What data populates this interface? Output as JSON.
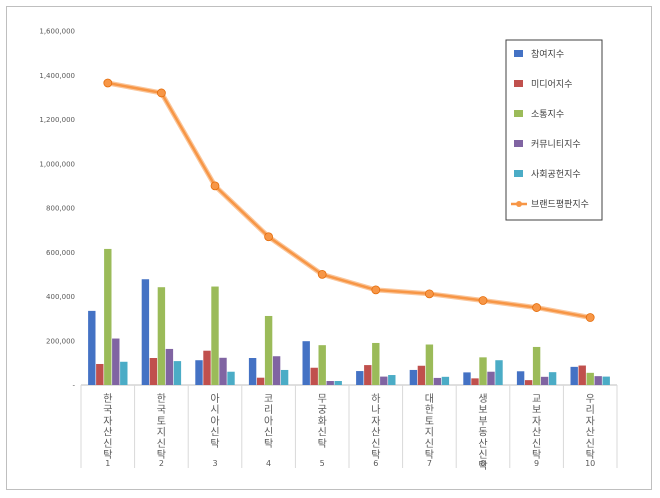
{
  "chart_data": {
    "type": "bar",
    "categories": [
      "한국자산신탁",
      "한국토지신탁",
      "아시아신탁",
      "코리아신탁",
      "무궁화신탁",
      "하나자산신탁",
      "대한토지신탁",
      "생보부동산신탁",
      "교보자산신탁",
      "우리자산신탁"
    ],
    "ranks": [
      "1",
      "2",
      "3",
      "4",
      "5",
      "6",
      "7",
      "8",
      "9",
      "10"
    ],
    "ylim": [
      0,
      1600000
    ],
    "yticks": [
      "-",
      "200,000",
      "400,000",
      "600,000",
      "800,000",
      "1,000,000",
      "1,200,000",
      "1,400,000",
      "1,600,000"
    ],
    "legend_position": "top-right",
    "series": [
      {
        "name": "참여지수",
        "type": "bar",
        "color": "#4472c4",
        "values": [
          335000,
          478000,
          112000,
          122000,
          198000,
          63000,
          68000,
          57000,
          62000,
          82000
        ]
      },
      {
        "name": "미디어지수",
        "type": "bar",
        "color": "#c0504d",
        "values": [
          95000,
          122000,
          155000,
          33000,
          78000,
          90000,
          87000,
          30000,
          22000,
          88000
        ]
      },
      {
        "name": "소통지수",
        "type": "bar",
        "color": "#9bbb59",
        "values": [
          615000,
          442000,
          445000,
          312000,
          180000,
          190000,
          183000,
          125000,
          172000,
          55000
        ]
      },
      {
        "name": "커뮤니티지수",
        "type": "bar",
        "color": "#8064a2",
        "values": [
          210000,
          163000,
          123000,
          130000,
          18000,
          38000,
          32000,
          60000,
          37000,
          40000
        ]
      },
      {
        "name": "사회공헌지수",
        "type": "bar",
        "color": "#4bacc6",
        "values": [
          105000,
          108000,
          60000,
          68000,
          18000,
          45000,
          37000,
          112000,
          58000,
          38000
        ]
      },
      {
        "name": "브랜드평판지수",
        "type": "line",
        "color": "#f79646",
        "values": [
          1365000,
          1320000,
          900000,
          670000,
          500000,
          430000,
          412000,
          382000,
          350000,
          305000
        ]
      }
    ]
  }
}
